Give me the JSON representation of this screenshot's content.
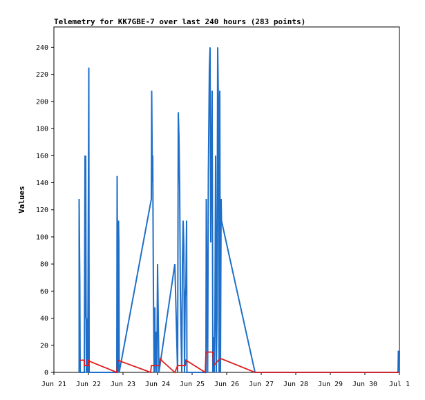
{
  "chart_data": {
    "type": "line",
    "title": "Telemetry for KK7GBE-7 over last 240 hours (283 points)",
    "xlabel": "",
    "ylabel": "Values",
    "x_ticks": [
      "Jun 21",
      "Jun 22",
      "Jun 23",
      "Jun 24",
      "Jun 25",
      "Jun 26",
      "Jun 27",
      "Jun 28",
      "Jun 29",
      "Jun 30",
      "Jul 1"
    ],
    "y_ticks": [
      0,
      20,
      40,
      60,
      80,
      100,
      120,
      140,
      160,
      180,
      200,
      220,
      240
    ],
    "ylim": [
      0,
      255
    ],
    "xlim_days": [
      0,
      10
    ],
    "grid": false,
    "legend": "none",
    "series": [
      {
        "color": "#1f6fc8",
        "points": [
          [
            0.73,
            0
          ],
          [
            0.73,
            128
          ],
          [
            0.75,
            64
          ],
          [
            0.76,
            0
          ],
          [
            0.88,
            0
          ],
          [
            0.89,
            80
          ],
          [
            0.9,
            160
          ],
          [
            0.91,
            40
          ],
          [
            0.92,
            160
          ],
          [
            0.93,
            60
          ],
          [
            0.94,
            0
          ],
          [
            0.96,
            40
          ],
          [
            0.98,
            0
          ],
          [
            1.0,
            145
          ],
          [
            1.01,
            225
          ],
          [
            1.02,
            0
          ],
          [
            1.82,
            0
          ],
          [
            1.83,
            145
          ],
          [
            1.85,
            0
          ],
          [
            1.86,
            80
          ],
          [
            1.87,
            112
          ],
          [
            1.88,
            96
          ],
          [
            1.89,
            0
          ],
          [
            2.82,
            128
          ],
          [
            2.83,
            208
          ],
          [
            2.85,
            140
          ],
          [
            2.86,
            160
          ],
          [
            2.88,
            60
          ],
          [
            2.9,
            0
          ],
          [
            2.92,
            48
          ],
          [
            2.93,
            0
          ],
          [
            2.96,
            30
          ],
          [
            2.98,
            0
          ],
          [
            3.0,
            80
          ],
          [
            3.02,
            40
          ],
          [
            3.04,
            0
          ],
          [
            3.5,
            80
          ],
          [
            3.58,
            0
          ],
          [
            3.6,
            192
          ],
          [
            3.62,
            173
          ],
          [
            3.64,
            135
          ],
          [
            3.66,
            60
          ],
          [
            3.7,
            0
          ],
          [
            3.72,
            80
          ],
          [
            3.74,
            112
          ],
          [
            3.76,
            94
          ],
          [
            3.78,
            0
          ],
          [
            3.8,
            56
          ],
          [
            3.82,
            64
          ],
          [
            3.84,
            112
          ],
          [
            3.85,
            0
          ],
          [
            4.4,
            0
          ],
          [
            4.41,
            128
          ],
          [
            4.45,
            0
          ],
          [
            4.47,
            145
          ],
          [
            4.5,
            225
          ],
          [
            4.52,
            240
          ],
          [
            4.54,
            96
          ],
          [
            4.56,
            160
          ],
          [
            4.58,
            208
          ],
          [
            4.6,
            0
          ],
          [
            4.62,
            26
          ],
          [
            4.64,
            0
          ],
          [
            4.66,
            40
          ],
          [
            4.68,
            160
          ],
          [
            4.7,
            0
          ],
          [
            4.72,
            40
          ],
          [
            4.74,
            240
          ],
          [
            4.76,
            200
          ],
          [
            4.78,
            0
          ],
          [
            4.8,
            208
          ],
          [
            4.82,
            0
          ],
          [
            4.84,
            128
          ],
          [
            4.85,
            112
          ],
          [
            5.82,
            0
          ],
          [
            9.96,
            0
          ],
          [
            9.97,
            16
          ],
          [
            9.98,
            0
          ]
        ]
      },
      {
        "color": "#e01c1c",
        "points": [
          [
            0.73,
            9
          ],
          [
            0.88,
            9
          ],
          [
            0.88,
            5
          ],
          [
            1.0,
            5
          ],
          [
            1.0,
            9
          ],
          [
            1.05,
            8
          ],
          [
            1.82,
            0
          ],
          [
            1.85,
            9
          ],
          [
            1.95,
            8
          ],
          [
            2.8,
            0
          ],
          [
            2.82,
            5
          ],
          [
            3.05,
            5
          ],
          [
            3.08,
            10
          ],
          [
            3.15,
            8
          ],
          [
            3.5,
            0
          ],
          [
            3.58,
            5
          ],
          [
            3.8,
            5
          ],
          [
            3.82,
            9
          ],
          [
            4.38,
            0
          ],
          [
            4.4,
            15
          ],
          [
            4.6,
            15
          ],
          [
            4.62,
            5
          ],
          [
            4.8,
            10
          ],
          [
            4.85,
            10
          ],
          [
            5.82,
            0
          ],
          [
            9.98,
            0
          ]
        ]
      }
    ]
  }
}
